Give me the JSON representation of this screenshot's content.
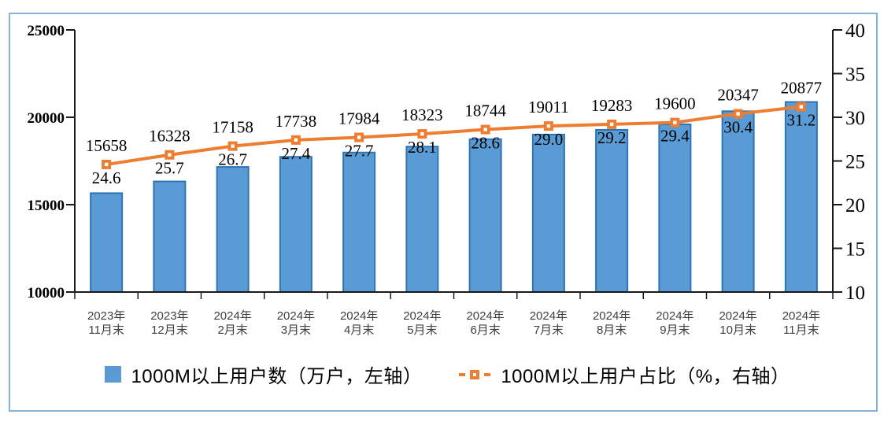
{
  "frame": {
    "border_color": "#85b3d9",
    "background": "#ffffff"
  },
  "legend": {
    "bar_item_label": "1000M以上用户数（万户，左轴）",
    "line_item_label": "1000M以上用户占比（%，右轴）"
  },
  "chart_data": {
    "type": "combo-bar-line",
    "title": "",
    "grid": false,
    "legend_position": "bottom",
    "categories_line1": [
      "2023年",
      "2023年",
      "2024年",
      "2024年",
      "2024年",
      "2024年",
      "2024年",
      "2024年",
      "2024年",
      "2024年",
      "2024年",
      "2024年"
    ],
    "categories_line2": [
      "11月末",
      "12月末",
      "2月末",
      "3月末",
      "4月末",
      "5月末",
      "6月末",
      "7月末",
      "8月末",
      "9月末",
      "10月末",
      "11月末"
    ],
    "series": [
      {
        "name": "1000M以上用户数",
        "legend_label": "1000M以上用户数（万户，左轴）",
        "type": "bar",
        "axis": "left",
        "values": [
          15658,
          16328,
          17158,
          17738,
          17984,
          18323,
          18744,
          19011,
          19283,
          19600,
          20347,
          20877
        ],
        "labels": [
          "15658",
          "16328",
          "17158",
          "17738",
          "17984",
          "18323",
          "18744",
          "19011",
          "19283",
          "19600",
          "20347",
          "20877"
        ],
        "color": "#5B9BD5",
        "border_color": "#2E75B6"
      },
      {
        "name": "1000M以上用户占比",
        "legend_label": "1000M以上用户占比（%，右轴）",
        "type": "line",
        "axis": "right",
        "values": [
          24.6,
          25.7,
          26.7,
          27.4,
          27.7,
          28.1,
          28.6,
          29.0,
          29.2,
          29.4,
          30.4,
          31.2
        ],
        "labels": [
          "24.6",
          "25.7",
          "26.7",
          "27.4",
          "27.7",
          "28.1",
          "28.6",
          "29.0",
          "29.2",
          "29.4",
          "30.4",
          "31.2"
        ],
        "color": "#ED7D31",
        "marker": "square-hollow"
      }
    ],
    "left_axis": {
      "min": 10000,
      "max": 25000,
      "ticks": [
        25000,
        20000,
        15000,
        10000
      ]
    },
    "right_axis": {
      "min": 10,
      "max": 40,
      "ticks": [
        40,
        35,
        30,
        25,
        20,
        15,
        10
      ]
    },
    "axis_color": "#1a1a1a",
    "category_label_color": "#3f3f3f"
  }
}
